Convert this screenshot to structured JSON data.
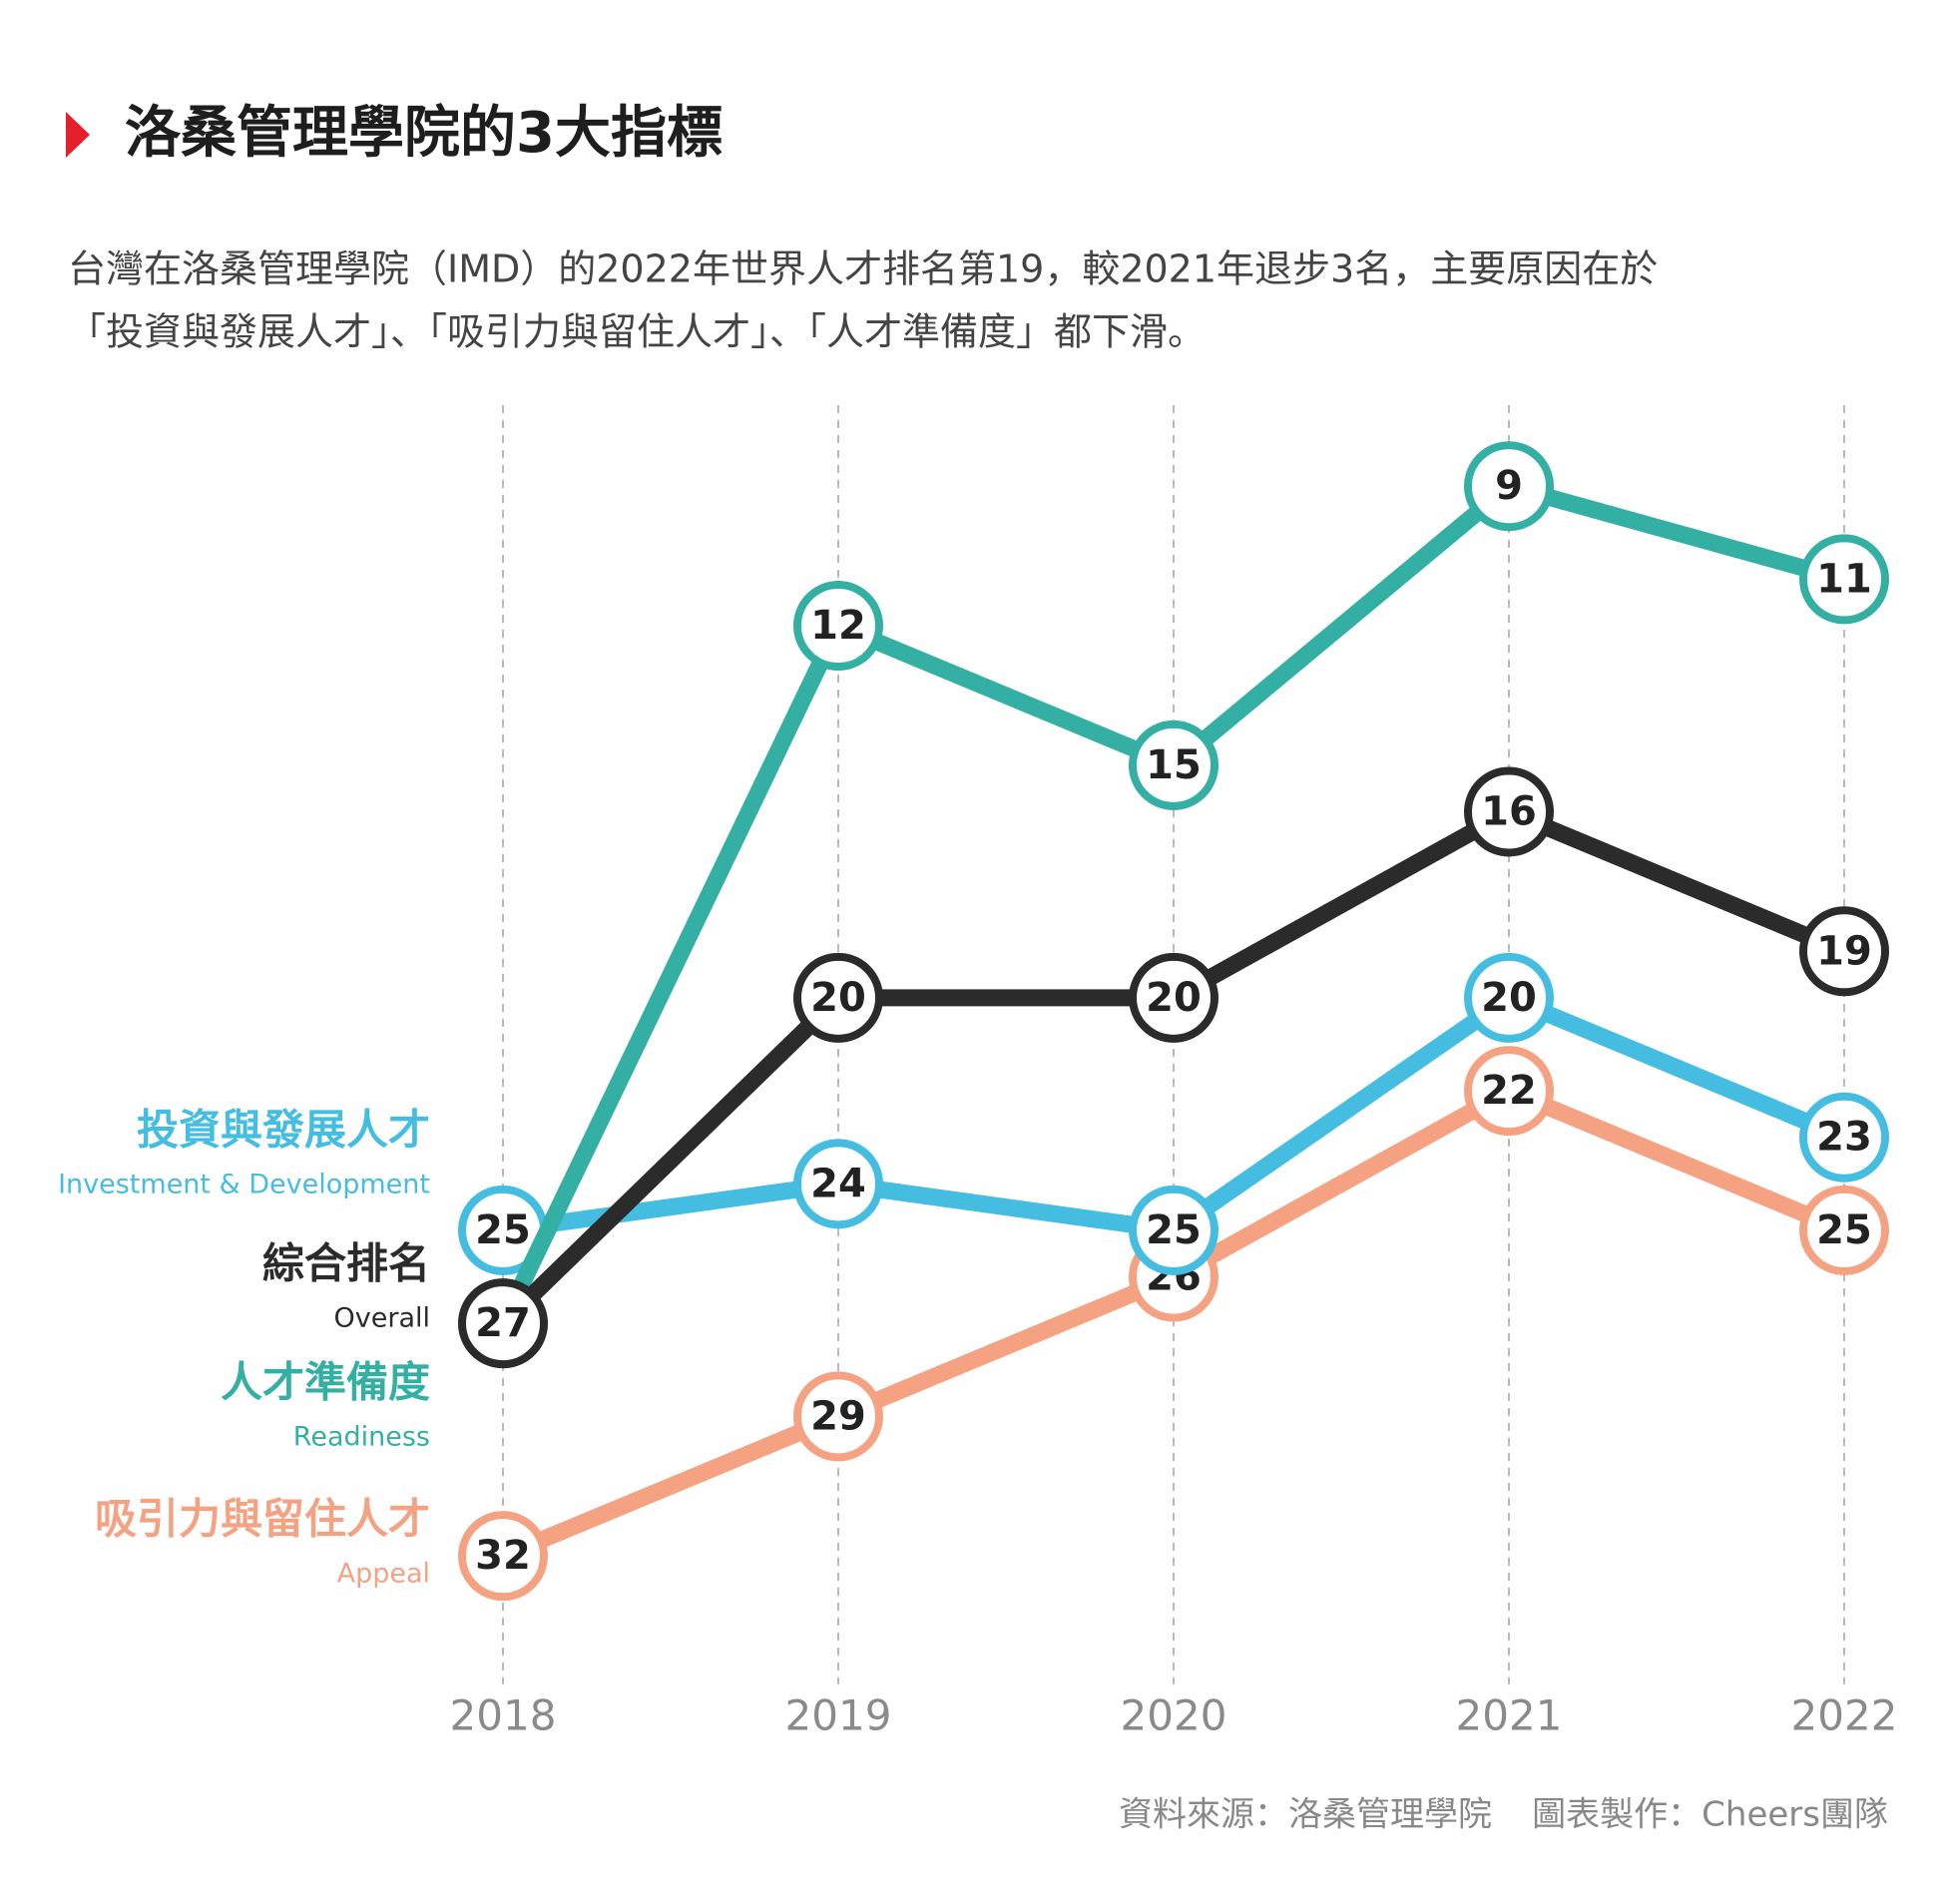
{
  "chart_data": {
    "type": "line",
    "title": "洛桑管理學院的3大指標",
    "subtitle": [
      "台灣在洛桑管理學院（IMD）的2022年世界人才排名第19，較2021年退步3名，主要原因在於",
      "「投資與發展人才」、「吸引力與留住人才」、「人才準備度」都下滑。"
    ],
    "categories": [
      "2018",
      "2019",
      "2020",
      "2021",
      "2022"
    ],
    "ylim": [
      7,
      35
    ],
    "y_inverted": true,
    "grid": true,
    "series": [
      {
        "name": "吸引力與留住人才",
        "name_en": "Appeal",
        "color": "#f5a283",
        "values": [
          32,
          29,
          26,
          22,
          25
        ]
      },
      {
        "name": "投資與發展人才",
        "name_en": "Investment & Development",
        "color": "#45bde0",
        "values": [
          25,
          24,
          25,
          20,
          23
        ]
      },
      {
        "name": "人才準備度",
        "name_en": "Readiness",
        "color": "#33afa4",
        "values": [
          27,
          12,
          15,
          9,
          11
        ]
      },
      {
        "name": "綜合排名",
        "name_en": "Overall",
        "color": "#2b2b2b",
        "values": [
          27,
          20,
          20,
          16,
          19
        ]
      }
    ],
    "source": "資料來源：洛桑管理學院",
    "credit": "圖表製作：Cheers團隊"
  }
}
